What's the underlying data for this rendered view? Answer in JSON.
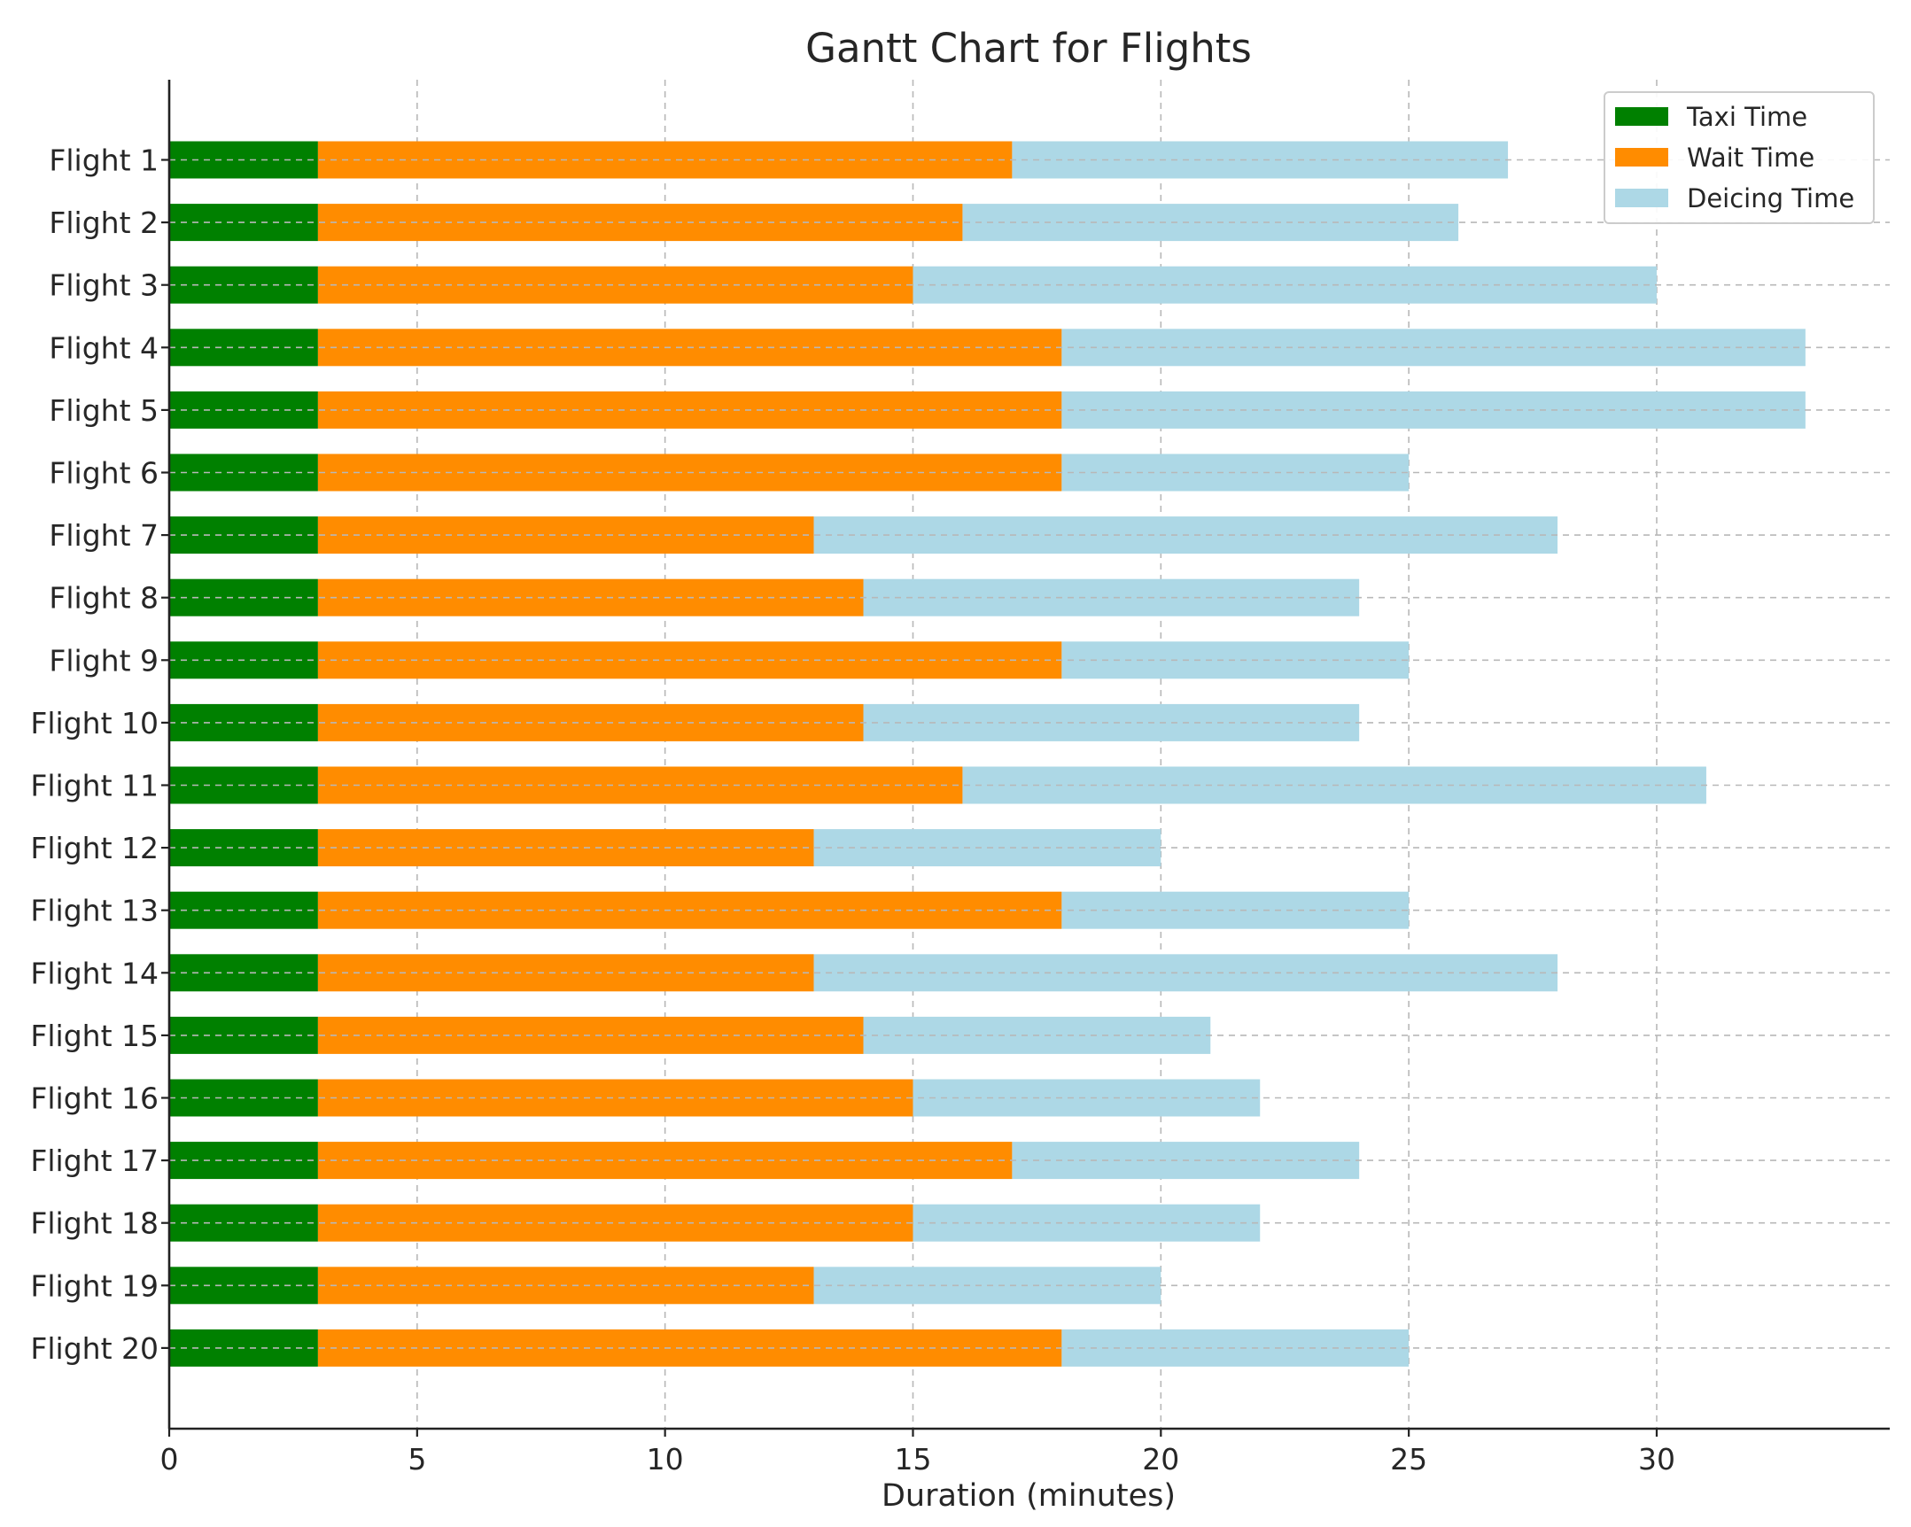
{
  "chart_data": {
    "type": "bar",
    "orientation": "horizontal",
    "stacked": true,
    "title": "Gantt Chart for Flights",
    "xlabel": "Duration (minutes)",
    "ylabel": "",
    "xlim": [
      0,
      34.7
    ],
    "xticks": [
      0,
      5,
      10,
      15,
      20,
      25,
      30
    ],
    "grid": true,
    "legend_position": "top-right",
    "categories": [
      "Flight 1",
      "Flight 2",
      "Flight 3",
      "Flight 4",
      "Flight 5",
      "Flight 6",
      "Flight 7",
      "Flight 8",
      "Flight 9",
      "Flight 10",
      "Flight 11",
      "Flight 12",
      "Flight 13",
      "Flight 14",
      "Flight 15",
      "Flight 16",
      "Flight 17",
      "Flight 18",
      "Flight 19",
      "Flight 20"
    ],
    "series": [
      {
        "name": "Taxi Time",
        "color": "#008000",
        "values": [
          3,
          3,
          3,
          3,
          3,
          3,
          3,
          3,
          3,
          3,
          3,
          3,
          3,
          3,
          3,
          3,
          3,
          3,
          3,
          3
        ]
      },
      {
        "name": "Wait Time",
        "color": "#ff8c00",
        "values": [
          14,
          13,
          12,
          15,
          15,
          15,
          10,
          11,
          15,
          11,
          13,
          10,
          15,
          10,
          11,
          12,
          14,
          12,
          10,
          15
        ]
      },
      {
        "name": "Deicing Time",
        "color": "#add8e6",
        "values": [
          10,
          10,
          15,
          15,
          15,
          7,
          15,
          10,
          7,
          10,
          15,
          7,
          7,
          15,
          7,
          7,
          7,
          7,
          7,
          7
        ]
      }
    ]
  }
}
